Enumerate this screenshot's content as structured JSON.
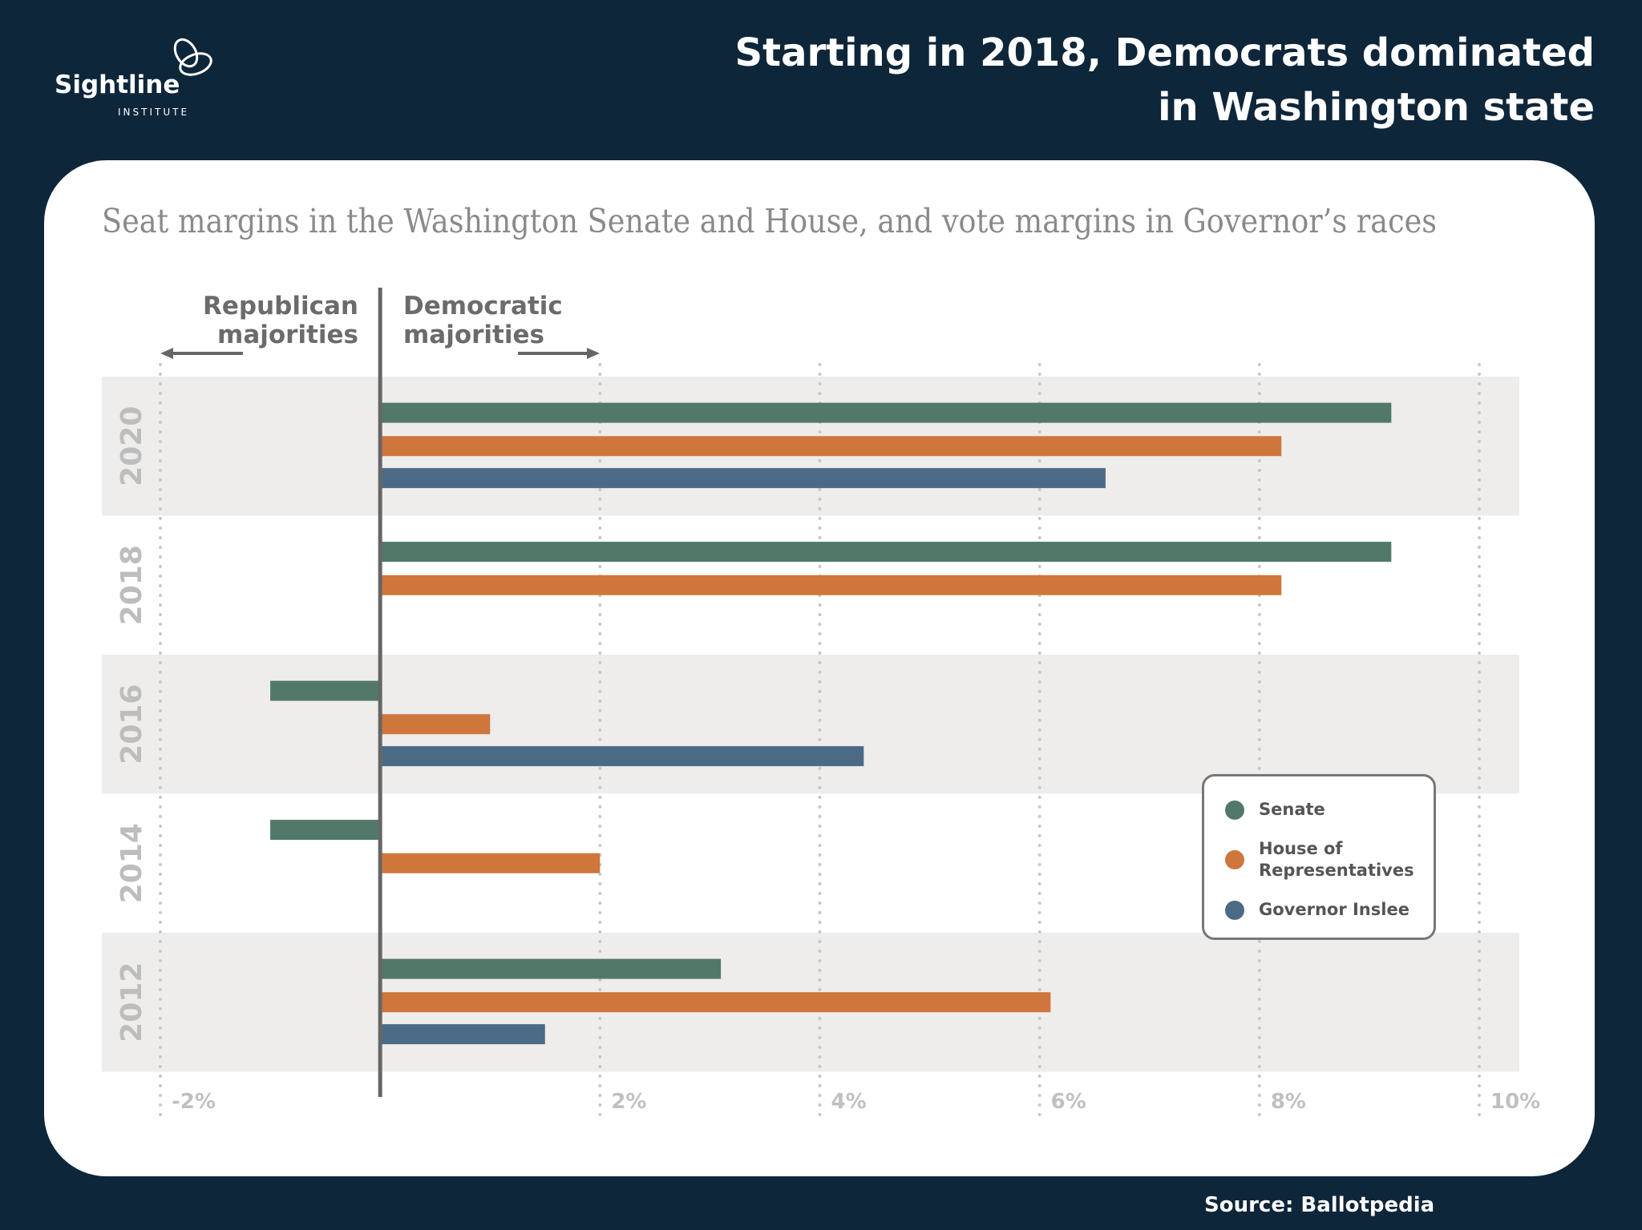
{
  "header": {
    "logo_name": "Sightline",
    "logo_sub": "INSTITUTE"
  },
  "chart_data": {
    "type": "bar",
    "orientation": "horizontal",
    "title": "Starting in 2018, Democrats dominated in Washington state",
    "subtitle": "Seat margins in the Washington Senate and House, and vote margins in Governor’s races",
    "annotation_left": [
      "Republican",
      "majorities"
    ],
    "annotation_right": [
      "Democratic",
      "majorities"
    ],
    "categories": [
      "2020",
      "2018",
      "2016",
      "2014",
      "2012"
    ],
    "series": [
      {
        "name": "Senate",
        "color": "#52786a",
        "values": [
          9.2,
          9.2,
          -1.0,
          -1.0,
          3.1
        ]
      },
      {
        "name": "House of Representatives",
        "color": "#cf763c",
        "values": [
          8.2,
          8.2,
          1.0,
          2.0,
          6.1
        ]
      },
      {
        "name": "Governor Inslee",
        "color": "#4b6a85",
        "values": [
          6.6,
          null,
          4.4,
          null,
          1.5
        ]
      }
    ],
    "xlim": [
      -2,
      10
    ],
    "xticks": [
      {
        "value": -2,
        "label": "-2%"
      },
      {
        "value": 2,
        "label": "2%"
      },
      {
        "value": 4,
        "label": "4%"
      },
      {
        "value": 6,
        "label": "6%"
      },
      {
        "value": 8,
        "label": "8%"
      },
      {
        "value": 10,
        "label": "10%"
      }
    ],
    "grid": true,
    "legend_position": "right",
    "source": "Source: Ballotpedia"
  }
}
